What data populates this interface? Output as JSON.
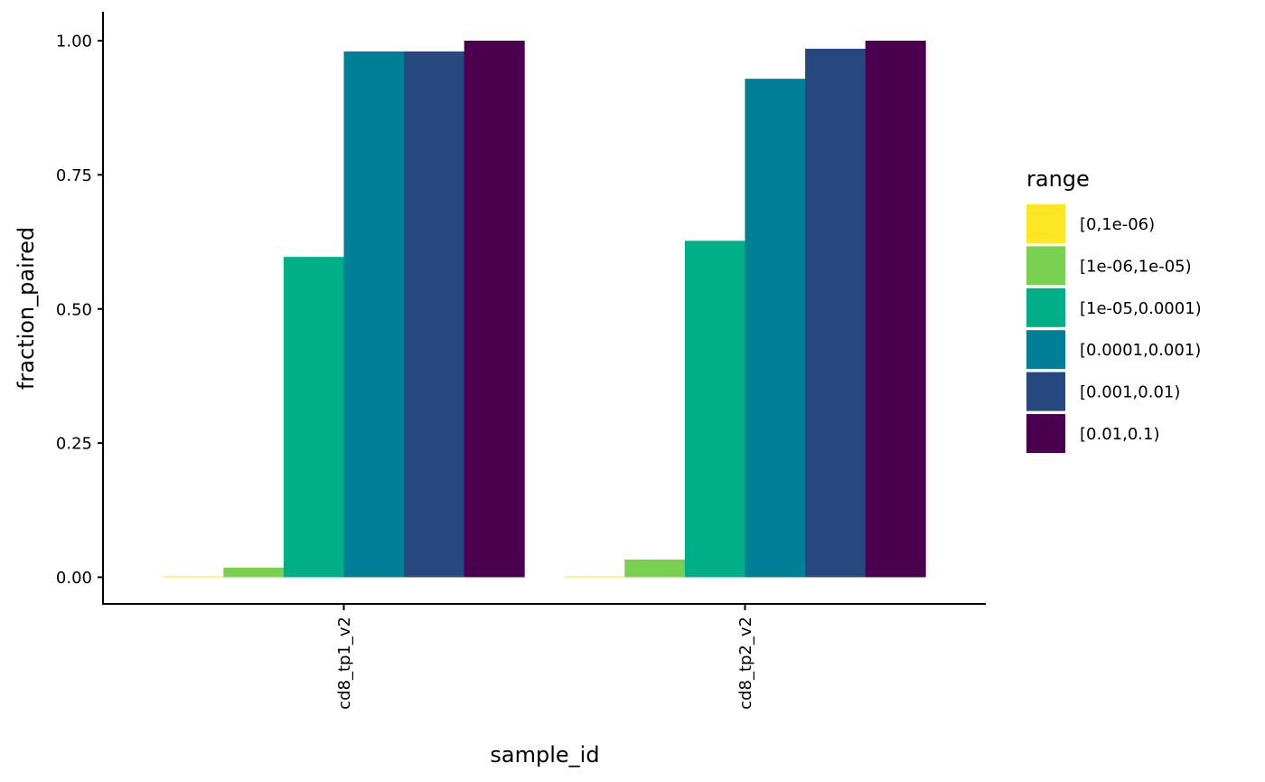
{
  "chart_data": {
    "type": "bar",
    "title": "",
    "xlabel": "sample_id",
    "ylabel": "fraction_paired",
    "ylim": [
      -0.05,
      1.05
    ],
    "yticks": [
      0.0,
      0.25,
      0.5,
      0.75,
      1.0
    ],
    "ytick_labels": [
      "0.00",
      "0.25",
      "0.50",
      "0.75",
      "1.00"
    ],
    "categories": [
      "cd8_tp1_v2",
      "cd8_tp2_v2"
    ],
    "grid": false,
    "legend_position": "right",
    "legend_title": "range",
    "series": [
      {
        "name": "[0,1e-06)",
        "color": "#FDE725",
        "values": [
          0.001,
          0.001
        ]
      },
      {
        "name": "[1e-06,1e-05)",
        "color": "#7AD151",
        "values": [
          0.018,
          0.033
        ]
      },
      {
        "name": "[1e-05,0.0001)",
        "color": "#00AF87",
        "values": [
          0.597,
          0.627
        ]
      },
      {
        "name": "[0.0001,0.001)",
        "color": "#007F96",
        "values": [
          0.98,
          0.929
        ]
      },
      {
        "name": "[0.001,0.01)",
        "color": "#26487E",
        "values": [
          0.98,
          0.985
        ]
      },
      {
        "name": "[0.01,0.1)",
        "color": "#4B004F",
        "values": [
          1.0,
          1.0
        ]
      }
    ]
  }
}
